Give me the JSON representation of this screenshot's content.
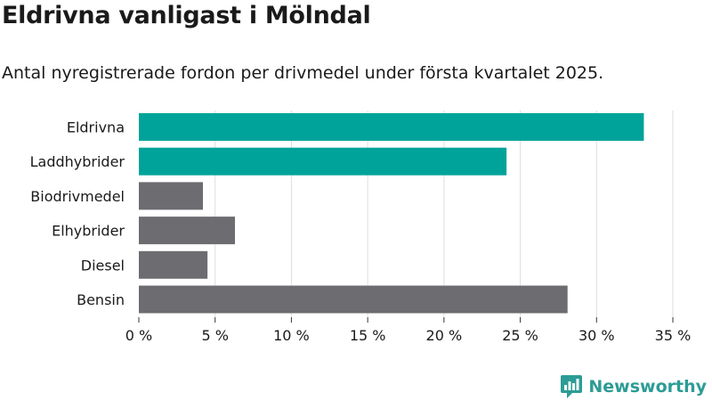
{
  "header": {
    "title": "Eldrivna vanligast i Mölndal",
    "subtitle": "Antal nyregistrerade fordon per drivmedel under första kvartalet 2025."
  },
  "brand": {
    "name": "Newsworthy",
    "logo_icon": "newsworthy-chart-logo-icon",
    "color": "#2c9c95"
  },
  "colors": {
    "highlight": "#00a39a",
    "default": "#6d6c71",
    "grid": "#dedede"
  },
  "chart_data": {
    "type": "bar",
    "orientation": "horizontal",
    "categories": [
      "Eldrivna",
      "Laddhybrider",
      "Biodrivmedel",
      "Elhybrider",
      "Diesel",
      "Bensin"
    ],
    "values": [
      33.1,
      24.1,
      4.2,
      6.3,
      4.5,
      28.1
    ],
    "highlighted": [
      true,
      true,
      false,
      false,
      false,
      false
    ],
    "xlim": [
      0,
      35
    ],
    "xticks": [
      0,
      5,
      10,
      15,
      20,
      25,
      30,
      35
    ],
    "xtick_labels": [
      "0 %",
      "5 %",
      "10 %",
      "15 %",
      "20 %",
      "25 %",
      "30 %",
      "35 %"
    ],
    "grid": true
  }
}
